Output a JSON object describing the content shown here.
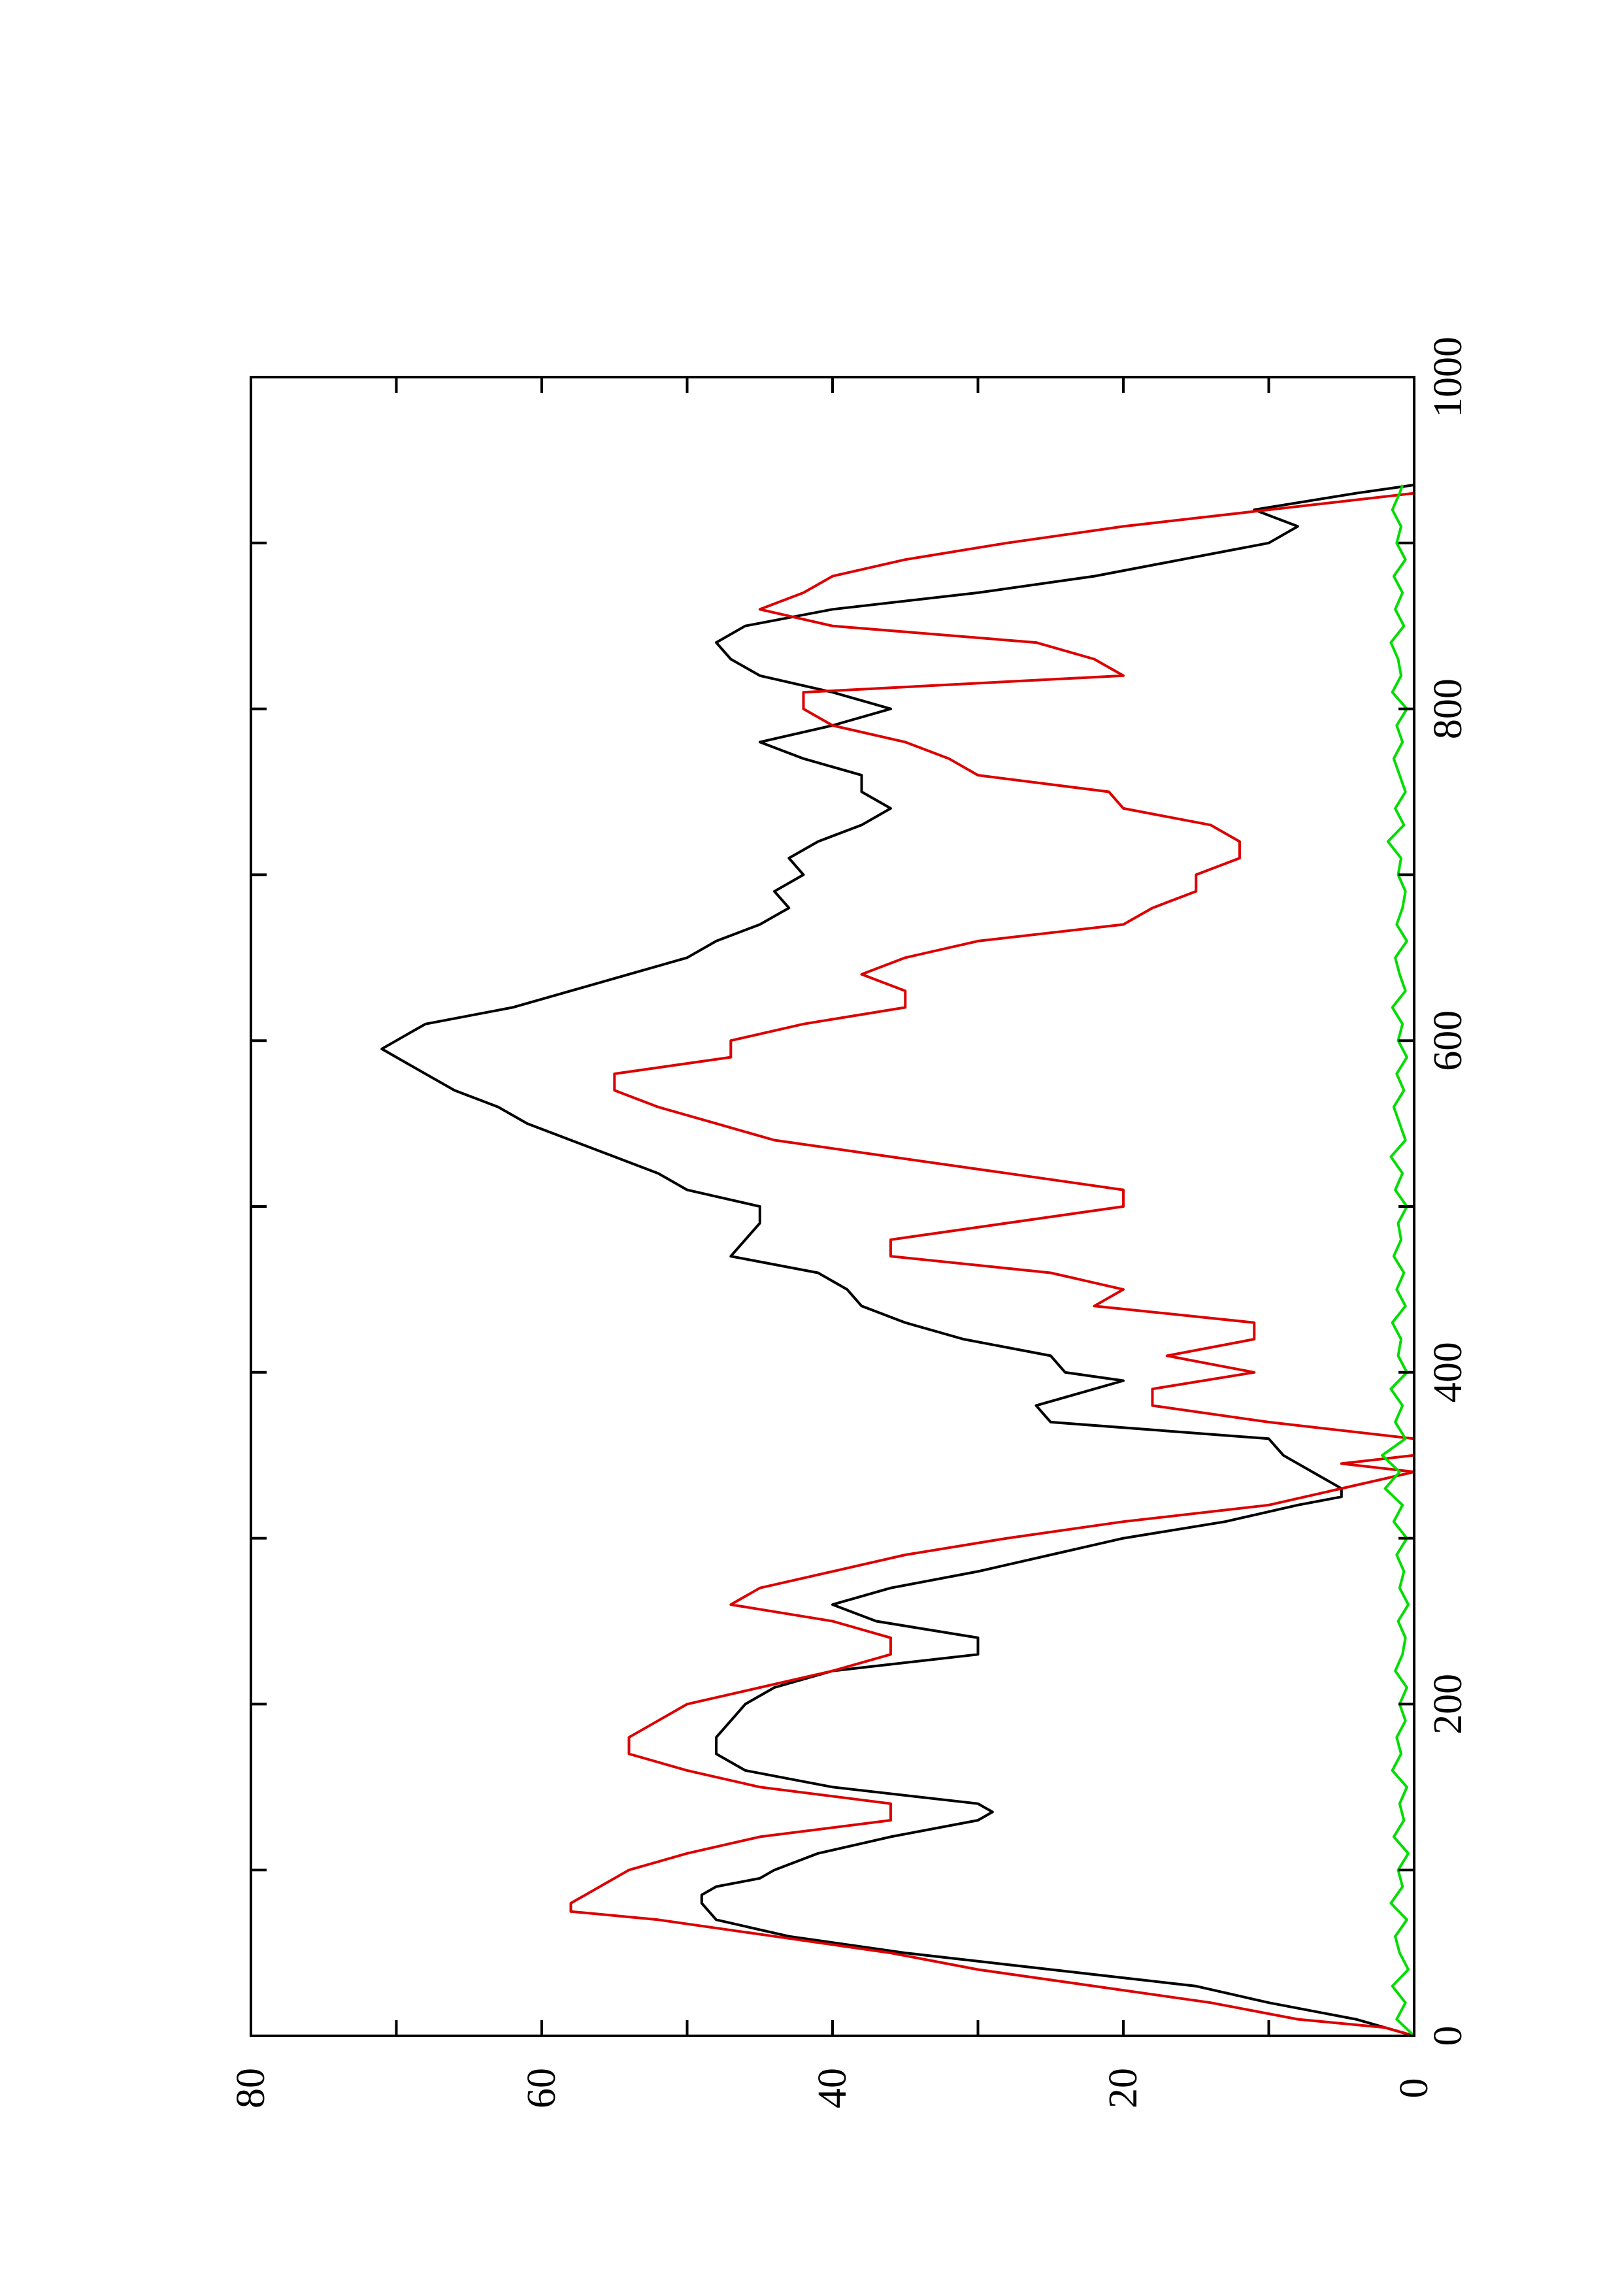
{
  "chart_data": {
    "type": "line",
    "orientation": "rotated-90-ccw",
    "title": "",
    "xlabel": "",
    "ylabel": "",
    "xlim": [
      0,
      1000
    ],
    "ylim": [
      0,
      80
    ],
    "xticks": [
      "0",
      "200",
      "400",
      "600",
      "800",
      "1000"
    ],
    "yticks": [
      "0",
      "20",
      "40",
      "60",
      "80"
    ],
    "grid": false,
    "legend": "none",
    "series": [
      {
        "color": "#000000",
        "x": [
          0,
          5,
          10,
          20,
          30,
          40,
          50,
          60,
          70,
          80,
          85,
          90,
          95,
          100,
          110,
          120,
          130,
          135,
          140,
          150,
          160,
          170,
          180,
          190,
          200,
          210,
          220,
          230,
          240,
          250,
          260,
          270,
          280,
          290,
          300,
          310,
          320,
          325,
          330,
          340,
          350,
          360,
          370,
          380,
          390,
          395,
          400,
          410,
          420,
          430,
          440,
          450,
          460,
          470,
          480,
          490,
          500,
          510,
          520,
          530,
          540,
          550,
          560,
          570,
          580,
          590,
          595,
          600,
          610,
          620,
          630,
          640,
          650,
          660,
          670,
          680,
          690,
          700,
          710,
          720,
          730,
          740,
          750,
          760,
          770,
          780,
          790,
          800,
          810,
          820,
          830,
          840,
          850,
          860,
          870,
          880,
          890,
          900,
          910,
          920,
          930,
          935
        ],
        "values": [
          0,
          2,
          4,
          10,
          15,
          25,
          35,
          43,
          48,
          49,
          49,
          48,
          45,
          44,
          41,
          36,
          30,
          29,
          30,
          40,
          46,
          48,
          48,
          47,
          46,
          44,
          40,
          30,
          30,
          37,
          40,
          36,
          30,
          25,
          20,
          13,
          8,
          5,
          5,
          7,
          9,
          10,
          25,
          26,
          22,
          20,
          24,
          25,
          31,
          35,
          38,
          39,
          41,
          47,
          46,
          45,
          45,
          50,
          52,
          55,
          58,
          61,
          63,
          66,
          68,
          70,
          71,
          70,
          68,
          62,
          58,
          54,
          50,
          48,
          45,
          43,
          44,
          42,
          43,
          41,
          38,
          36,
          38,
          38,
          42,
          45,
          40,
          36,
          40,
          45,
          47,
          48,
          46,
          40,
          30,
          22,
          16,
          10,
          8,
          11,
          4,
          0
        ]
      },
      {
        "color": "#dd0000",
        "x": [
          0,
          5,
          10,
          20,
          30,
          40,
          50,
          60,
          70,
          75,
          80,
          100,
          110,
          120,
          130,
          140,
          150,
          160,
          170,
          180,
          190,
          200,
          210,
          220,
          230,
          240,
          250,
          260,
          270,
          280,
          290,
          300,
          310,
          320,
          330,
          340,
          345,
          350,
          360,
          370,
          380,
          390,
          400,
          410,
          420,
          430,
          440,
          450,
          460,
          470,
          480,
          500,
          510,
          520,
          530,
          540,
          550,
          560,
          570,
          580,
          590,
          600,
          610,
          620,
          630,
          640,
          650,
          660,
          670,
          680,
          690,
          700,
          710,
          720,
          730,
          740,
          750,
          760,
          770,
          780,
          790,
          800,
          810,
          820,
          830,
          840,
          850,
          860,
          870,
          880,
          890,
          900,
          910,
          920,
          930
        ],
        "values": [
          0,
          2,
          8,
          14,
          22,
          30,
          36,
          44,
          52,
          58,
          58,
          54,
          50,
          45,
          36,
          36,
          45,
          50,
          54,
          54,
          52,
          50,
          45,
          40,
          36,
          36,
          40,
          47,
          45,
          40,
          35,
          28,
          20,
          10,
          5,
          0,
          5,
          0,
          0,
          10,
          18,
          18,
          11,
          17,
          11,
          11,
          22,
          20,
          25,
          36,
          36,
          20,
          20,
          28,
          36,
          44,
          48,
          52,
          55,
          55,
          47,
          47,
          42,
          35,
          35,
          38,
          35,
          30,
          20,
          18,
          15,
          15,
          12,
          12,
          14,
          20,
          21,
          30,
          32,
          35,
          40,
          42,
          42,
          20,
          22,
          26,
          40,
          45,
          42,
          40,
          35,
          28,
          20,
          10,
          0
        ]
      },
      {
        "color": "#00dd00",
        "x": [
          0,
          10,
          20,
          30,
          40,
          50,
          60,
          70,
          80,
          90,
          100,
          110,
          120,
          130,
          140,
          150,
          160,
          170,
          180,
          190,
          200,
          210,
          220,
          230,
          240,
          250,
          260,
          270,
          280,
          290,
          300,
          310,
          320,
          330,
          340,
          350,
          360,
          370,
          380,
          390,
          400,
          410,
          420,
          430,
          440,
          450,
          460,
          470,
          480,
          490,
          500,
          510,
          520,
          530,
          540,
          550,
          560,
          570,
          580,
          590,
          600,
          610,
          620,
          630,
          640,
          650,
          660,
          670,
          680,
          690,
          700,
          710,
          720,
          730,
          740,
          750,
          760,
          770,
          780,
          790,
          800,
          810,
          820,
          830,
          840,
          850,
          860,
          870,
          880,
          890,
          900,
          910,
          920,
          930,
          935
        ],
        "values": [
          0,
          1.2,
          0.6,
          1.5,
          0.4,
          1.0,
          1.3,
          0.5,
          1.6,
          0.8,
          1.1,
          0.4,
          1.4,
          0.7,
          1.0,
          0.5,
          1.5,
          0.9,
          1.2,
          0.6,
          1.0,
          0.5,
          1.3,
          0.8,
          0.6,
          1.1,
          0.4,
          1.0,
          0.7,
          1.2,
          0.5,
          1.4,
          0.8,
          2.0,
          1.0,
          2.2,
          0.6,
          1.3,
          0.8,
          1.6,
          0.5,
          1.1,
          0.9,
          1.5,
          0.6,
          1.2,
          0.7,
          1.4,
          0.9,
          1.1,
          0.5,
          1.3,
          0.8,
          1.6,
          0.6,
          1.0,
          1.4,
          0.7,
          1.2,
          0.5,
          1.1,
          0.8,
          1.5,
          0.6,
          1.0,
          1.3,
          0.5,
          1.2,
          0.8,
          0.6,
          1.1,
          0.9,
          1.8,
          0.7,
          1.3,
          0.6,
          1.0,
          1.4,
          0.8,
          1.2,
          0.5,
          1.5,
          0.9,
          1.1,
          1.6,
          0.7,
          1.3,
          0.8,
          1.4,
          0.6,
          1.2,
          0.9,
          1.5,
          1.0,
          0.8
        ]
      }
    ]
  }
}
